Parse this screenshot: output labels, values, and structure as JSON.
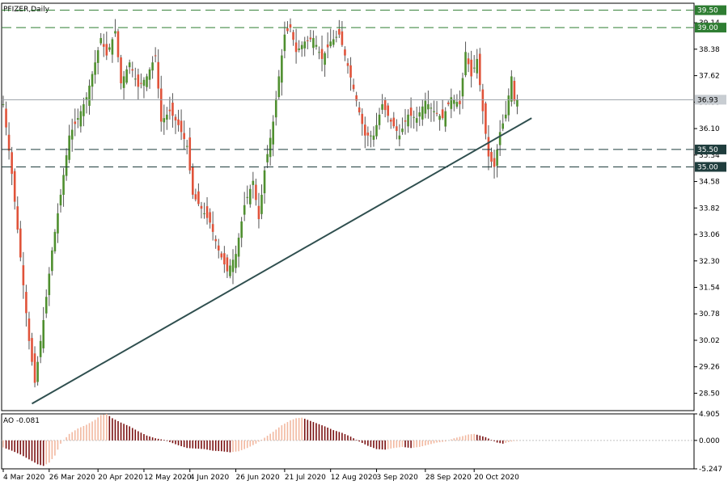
{
  "chart_data": {
    "type": "candlestick",
    "title": "PFIZER,Daily",
    "price_axis": {
      "ylim": [
        28.0,
        39.7
      ],
      "tick_labels": [
        "39.14",
        "38.38",
        "37.62",
        "36.86",
        "36.10",
        "35.34",
        "34.58",
        "33.82",
        "33.06",
        "32.30",
        "31.54",
        "30.78",
        "30.02",
        "29.26",
        "28.50"
      ]
    },
    "current_price": "36.93",
    "levels": [
      {
        "label": "39.50",
        "value": 39.5,
        "style": "dashed",
        "color": "#2e7d32"
      },
      {
        "label": "39.00",
        "value": 39.0,
        "style": "dashed",
        "color": "#2e7d32"
      },
      {
        "label": "35.50",
        "value": 35.5,
        "style": "dashed",
        "color": "#1f3d3d"
      },
      {
        "label": "35.00",
        "value": 35.0,
        "style": "dashed",
        "color": "#1f3d3d"
      }
    ],
    "trendline": {
      "from": {
        "bar": 10,
        "price": 28.2
      },
      "to": {
        "bar": 184,
        "price": 36.4
      }
    },
    "x_labels": [
      {
        "label": "4 Mar 2020",
        "bar": 0
      },
      {
        "label": "26 Mar 2020",
        "bar": 16
      },
      {
        "label": "20 Apr 2020",
        "bar": 33
      },
      {
        "label": "12 May 2020",
        "bar": 49
      },
      {
        "label": "4 Jun 2020",
        "bar": 65
      },
      {
        "label": "26 Jun 2020",
        "bar": 81
      },
      {
        "label": "21 Jul 2020",
        "bar": 98
      },
      {
        "label": "12 Aug 2020",
        "bar": 114
      },
      {
        "label": "3 Sep 2020",
        "bar": 130
      },
      {
        "label": "28 Sep 2020",
        "bar": 147
      },
      {
        "label": "20 Oct 2020",
        "bar": 164
      }
    ],
    "close_path": [
      {
        "bar": 0,
        "close": 36.8
      },
      {
        "bar": 3,
        "close": 34.8
      },
      {
        "bar": 6,
        "close": 32.4
      },
      {
        "bar": 9,
        "close": 30.0
      },
      {
        "bar": 11,
        "close": 28.8
      },
      {
        "bar": 14,
        "close": 30.6
      },
      {
        "bar": 17,
        "close": 32.6
      },
      {
        "bar": 20,
        "close": 34.2
      },
      {
        "bar": 23,
        "close": 35.9
      },
      {
        "bar": 26,
        "close": 36.4
      },
      {
        "bar": 29,
        "close": 37.0
      },
      {
        "bar": 32,
        "close": 38.0
      },
      {
        "bar": 34,
        "close": 38.7
      },
      {
        "bar": 36,
        "close": 38.2
      },
      {
        "bar": 39,
        "close": 38.9
      },
      {
        "bar": 41,
        "close": 37.4
      },
      {
        "bar": 44,
        "close": 38.0
      },
      {
        "bar": 47,
        "close": 37.3
      },
      {
        "bar": 50,
        "close": 37.6
      },
      {
        "bar": 53,
        "close": 38.2
      },
      {
        "bar": 55,
        "close": 36.3
      },
      {
        "bar": 58,
        "close": 36.6
      },
      {
        "bar": 61,
        "close": 36.2
      },
      {
        "bar": 64,
        "close": 35.6
      },
      {
        "bar": 66,
        "close": 34.2
      },
      {
        "bar": 69,
        "close": 33.8
      },
      {
        "bar": 72,
        "close": 33.4
      },
      {
        "bar": 75,
        "close": 32.6
      },
      {
        "bar": 78,
        "close": 32.0
      },
      {
        "bar": 81,
        "close": 32.5
      },
      {
        "bar": 84,
        "close": 33.9
      },
      {
        "bar": 87,
        "close": 34.6
      },
      {
        "bar": 89,
        "close": 33.5
      },
      {
        "bar": 91,
        "close": 34.9
      },
      {
        "bar": 94,
        "close": 36.3
      },
      {
        "bar": 96,
        "close": 37.6
      },
      {
        "bar": 98,
        "close": 38.8
      },
      {
        "bar": 100,
        "close": 39.0
      },
      {
        "bar": 102,
        "close": 38.3
      },
      {
        "bar": 105,
        "close": 38.6
      },
      {
        "bar": 108,
        "close": 38.7
      },
      {
        "bar": 111,
        "close": 38.1
      },
      {
        "bar": 114,
        "close": 38.6
      },
      {
        "bar": 117,
        "close": 38.8
      },
      {
        "bar": 120,
        "close": 37.9
      },
      {
        "bar": 123,
        "close": 36.9
      },
      {
        "bar": 126,
        "close": 35.9
      },
      {
        "bar": 129,
        "close": 35.9
      },
      {
        "bar": 132,
        "close": 36.8
      },
      {
        "bar": 135,
        "close": 36.3
      },
      {
        "bar": 138,
        "close": 35.9
      },
      {
        "bar": 141,
        "close": 36.5
      },
      {
        "bar": 144,
        "close": 36.4
      },
      {
        "bar": 147,
        "close": 36.9
      },
      {
        "bar": 150,
        "close": 36.6
      },
      {
        "bar": 153,
        "close": 36.4
      },
      {
        "bar": 156,
        "close": 37.0
      },
      {
        "bar": 159,
        "close": 36.8
      },
      {
        "bar": 161,
        "close": 38.3
      },
      {
        "bar": 163,
        "close": 37.6
      },
      {
        "bar": 165,
        "close": 38.1
      },
      {
        "bar": 167,
        "close": 36.6
      },
      {
        "bar": 169,
        "close": 35.3
      },
      {
        "bar": 171,
        "close": 35.0
      },
      {
        "bar": 173,
        "close": 36.0
      },
      {
        "bar": 175,
        "close": 36.5
      },
      {
        "bar": 177,
        "close": 37.6
      },
      {
        "bar": 178,
        "close": 36.9
      },
      {
        "bar": 179,
        "close": 36.93
      }
    ],
    "ao": {
      "label": "AO -0.081",
      "value": "-0.081",
      "tick_labels": [
        "4.905",
        "0.000",
        "-5.247"
      ],
      "ylim": [
        -5.247,
        4.905
      ],
      "path": [
        {
          "bar": 0,
          "v": -1.3
        },
        {
          "bar": 3,
          "v": -1.9
        },
        {
          "bar": 6,
          "v": -2.6
        },
        {
          "bar": 9,
          "v": -3.5
        },
        {
          "bar": 12,
          "v": -4.4
        },
        {
          "bar": 14,
          "v": -4.7
        },
        {
          "bar": 16,
          "v": -4.1
        },
        {
          "bar": 18,
          "v": -2.8
        },
        {
          "bar": 20,
          "v": -0.6
        },
        {
          "bar": 23,
          "v": 1.2
        },
        {
          "bar": 26,
          "v": 2.2
        },
        {
          "bar": 29,
          "v": 2.9
        },
        {
          "bar": 32,
          "v": 3.8
        },
        {
          "bar": 34,
          "v": 4.7
        },
        {
          "bar": 36,
          "v": 4.9
        },
        {
          "bar": 38,
          "v": 4.1
        },
        {
          "bar": 41,
          "v": 3.3
        },
        {
          "bar": 44,
          "v": 2.6
        },
        {
          "bar": 47,
          "v": 1.7
        },
        {
          "bar": 50,
          "v": 0.9
        },
        {
          "bar": 53,
          "v": 0.4
        },
        {
          "bar": 56,
          "v": 0.1
        },
        {
          "bar": 58,
          "v": -0.3
        },
        {
          "bar": 61,
          "v": -0.9
        },
        {
          "bar": 64,
          "v": -1.4
        },
        {
          "bar": 67,
          "v": -1.5
        },
        {
          "bar": 70,
          "v": -1.6
        },
        {
          "bar": 73,
          "v": -1.9
        },
        {
          "bar": 76,
          "v": -2.0
        },
        {
          "bar": 79,
          "v": -2.2
        },
        {
          "bar": 82,
          "v": -2.0
        },
        {
          "bar": 85,
          "v": -1.4
        },
        {
          "bar": 88,
          "v": -0.6
        },
        {
          "bar": 91,
          "v": 0.5
        },
        {
          "bar": 94,
          "v": 1.6
        },
        {
          "bar": 97,
          "v": 2.8
        },
        {
          "bar": 100,
          "v": 3.7
        },
        {
          "bar": 102,
          "v": 4.1
        },
        {
          "bar": 104,
          "v": 4.2
        },
        {
          "bar": 106,
          "v": 3.8
        },
        {
          "bar": 109,
          "v": 3.2
        },
        {
          "bar": 112,
          "v": 2.6
        },
        {
          "bar": 115,
          "v": 1.9
        },
        {
          "bar": 118,
          "v": 1.4
        },
        {
          "bar": 121,
          "v": 0.7
        },
        {
          "bar": 124,
          "v": -0.2
        },
        {
          "bar": 127,
          "v": -1.0
        },
        {
          "bar": 130,
          "v": -1.6
        },
        {
          "bar": 133,
          "v": -1.7
        },
        {
          "bar": 136,
          "v": -1.4
        },
        {
          "bar": 139,
          "v": -1.2
        },
        {
          "bar": 142,
          "v": -1.4
        },
        {
          "bar": 145,
          "v": -1.2
        },
        {
          "bar": 148,
          "v": -0.8
        },
        {
          "bar": 151,
          "v": -0.4
        },
        {
          "bar": 154,
          "v": -0.2
        },
        {
          "bar": 157,
          "v": 0.4
        },
        {
          "bar": 160,
          "v": 0.8
        },
        {
          "bar": 162,
          "v": 1.1
        },
        {
          "bar": 164,
          "v": 1.2
        },
        {
          "bar": 166,
          "v": 0.9
        },
        {
          "bar": 168,
          "v": 0.6
        },
        {
          "bar": 170,
          "v": 0.1
        },
        {
          "bar": 172,
          "v": -0.4
        },
        {
          "bar": 174,
          "v": -0.6
        },
        {
          "bar": 176,
          "v": -0.3
        },
        {
          "bar": 178,
          "v": -0.1
        },
        {
          "bar": 179,
          "v": -0.081
        }
      ]
    },
    "colors": {
      "bull": "#4f8f2f",
      "bear": "#e0533a",
      "wick": "#555555",
      "ao_up": "#f2b8a0",
      "ao_down": "#7a1010",
      "trendline": "#2f4f4f",
      "price_line": "#9aa0a6",
      "level_green": "#2e7d32",
      "level_dark": "#1f3d3d",
      "axis": "#000000"
    }
  }
}
